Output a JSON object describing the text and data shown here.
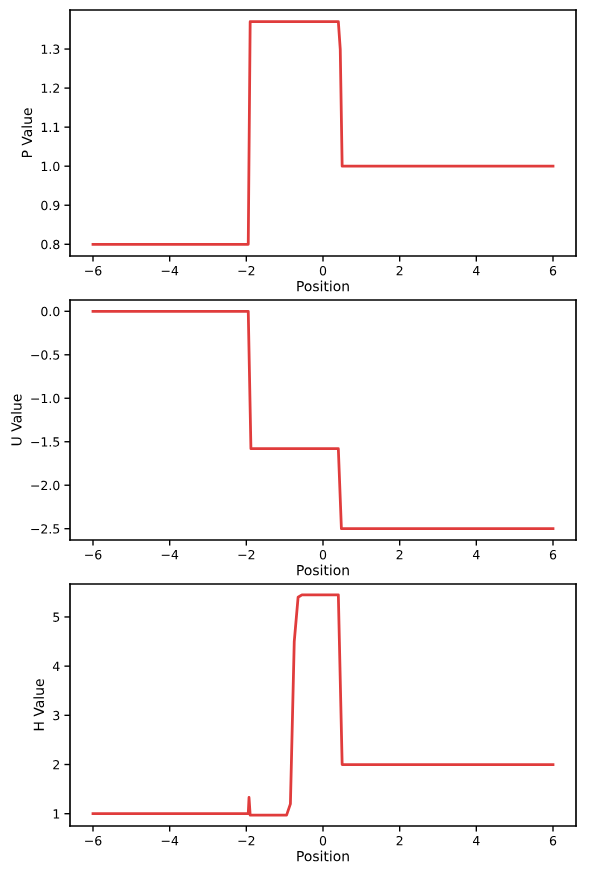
{
  "chart_data": [
    {
      "type": "line",
      "xlabel": "Position",
      "ylabel": "P Value",
      "color": "#e03c3c",
      "grid": false,
      "legend": false,
      "x": [
        -6,
        -1.95,
        -1.9,
        0.4,
        0.45,
        0.5,
        6
      ],
      "values": [
        0.8,
        0.8,
        1.37,
        1.37,
        1.3,
        1.0,
        1.0
      ],
      "xlim": [
        -6.6,
        6.6
      ],
      "xticks": [
        {
          "value": -6,
          "label": "−6"
        },
        {
          "value": -4,
          "label": "−4"
        },
        {
          "value": -2,
          "label": "−2"
        },
        0,
        2,
        4,
        6
      ],
      "ylim": [
        0.77,
        1.4
      ],
      "yticks": [
        0.8,
        0.9,
        {
          "value": 1,
          "label": "1.0"
        },
        1.1,
        1.2,
        1.3
      ]
    },
    {
      "type": "line",
      "xlabel": "Position",
      "ylabel": "U Value",
      "color": "#e03c3c",
      "grid": false,
      "legend": false,
      "x": [
        -6,
        -1.95,
        -1.88,
        0.4,
        0.48,
        6
      ],
      "values": [
        0,
        0,
        -1.58,
        -1.58,
        -2.5,
        -2.5
      ],
      "xlim": [
        -6.6,
        6.6
      ],
      "xticks": [
        {
          "value": -6,
          "label": "−6"
        },
        {
          "value": -4,
          "label": "−4"
        },
        {
          "value": -2,
          "label": "−2"
        },
        0,
        2,
        4,
        6
      ],
      "ylim": [
        -2.63,
        0.13
      ],
      "yticks": [
        {
          "value": -2.5,
          "label": "−2.5"
        },
        {
          "value": -2,
          "label": "−2.0"
        },
        {
          "value": -1.5,
          "label": "−1.5"
        },
        {
          "value": -1,
          "label": "−1.0"
        },
        {
          "value": -0.5,
          "label": "−0.5"
        },
        {
          "value": 0,
          "label": "0.0"
        }
      ]
    },
    {
      "type": "line",
      "xlabel": "Position",
      "ylabel": "H Value",
      "color": "#e03c3c",
      "grid": false,
      "legend": false,
      "x": [
        -6,
        -1.95,
        -1.93,
        -1.9,
        -0.95,
        -0.85,
        -0.75,
        -0.65,
        -0.55,
        0.4,
        0.5,
        6
      ],
      "values": [
        1.0,
        1.0,
        1.33,
        0.97,
        0.97,
        1.2,
        4.5,
        5.4,
        5.45,
        5.45,
        2.0,
        2.0
      ],
      "xlim": [
        -6.6,
        6.6
      ],
      "xticks": [
        {
          "value": -6,
          "label": "−6"
        },
        {
          "value": -4,
          "label": "−4"
        },
        {
          "value": -2,
          "label": "−2"
        },
        0,
        2,
        4,
        6
      ],
      "ylim": [
        0.75,
        5.67
      ],
      "yticks": [
        1,
        2,
        3,
        4,
        5
      ]
    }
  ]
}
